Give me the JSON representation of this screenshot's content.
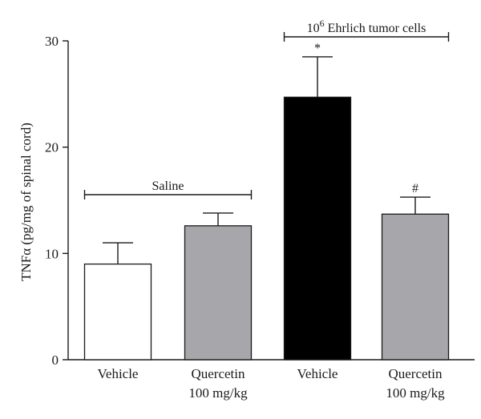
{
  "chart_data": {
    "type": "bar",
    "ylabel": "TNFα (pg/mg of spinal cord)",
    "ylim": [
      0,
      30
    ],
    "yticks": [
      "0",
      "10",
      "20",
      "30"
    ],
    "categories": [
      [
        "Vehicle"
      ],
      [
        "Quercetin",
        "100 mg/kg"
      ],
      [
        "Vehicle"
      ],
      [
        "Quercetin",
        "100 mg/kg"
      ]
    ],
    "values": [
      9.0,
      12.6,
      24.7,
      13.7
    ],
    "errors": [
      2.0,
      1.2,
      3.8,
      1.6
    ],
    "bar_colors": [
      "#ffffff",
      "#a7a6aa",
      "#000000",
      "#a7a6aa"
    ],
    "significance": [
      "",
      "",
      "*",
      "#"
    ],
    "groups": [
      {
        "label": "Saline",
        "bars": [
          0,
          1
        ]
      },
      {
        "label_base": "10",
        "label_sup": "6",
        "label_rest": " Ehrlich tumor cells",
        "bars": [
          2,
          3
        ]
      }
    ]
  }
}
